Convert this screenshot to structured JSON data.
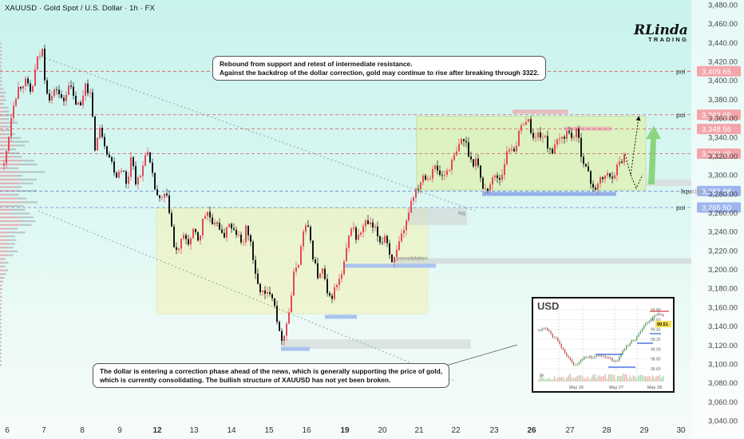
{
  "title": "XAUUSD · Gold Spot / U.S. Dollar · 1h · FX",
  "logo": {
    "main": "RLinda",
    "sub": "TRADING"
  },
  "notes": {
    "top": [
      "Rebound from support and retest of intermediate resistance.",
      "Against the backdrop of the dollar correction, gold may continue to rise after breaking through 3322."
    ],
    "bottom": [
      "The dollar is entering a correction phase ahead of the news, which is generally supporting the price of gold,",
      "which is currently consolidating. The bullish structure of XAUUSD has not yet been broken."
    ]
  },
  "levels": [
    {
      "price": 3409.65,
      "label": "3,409.65",
      "tag": "poi",
      "color": "#e53940",
      "line": "#d95a66"
    },
    {
      "price": 3363.65,
      "label": "3,363.65",
      "tag": "poi",
      "color": "#e53940",
      "line": "#d95a66"
    },
    {
      "price": 3348.56,
      "label": "3,348.56",
      "tag": "",
      "color": "#e53940",
      "line": "#d95a66"
    },
    {
      "price": 3322.49,
      "label": "3,322.49",
      "tag": "",
      "color": "#e53940",
      "line": "#d95a66"
    },
    {
      "price": 3282.88,
      "label": "3,282.88",
      "tag": "liquidity",
      "color": "#2a5bd7",
      "line": "#5a7bd7"
    },
    {
      "price": 3265.5,
      "label": "3,265.50",
      "tag": "poi",
      "color": "#2a5bd7",
      "line": "#6a8ad0"
    }
  ],
  "zones": {
    "fvg": "fvg",
    "consolidation": "consolidation"
  },
  "inset": {
    "title": "USD",
    "price_ticks": [
      "99.80",
      "99.60",
      "99.40",
      "99.20",
      "99.00",
      "98.80",
      "98.60"
    ],
    "current": "99.51",
    "volume_label": "5k",
    "dates": [
      "May 26",
      "May 27",
      "May 28"
    ]
  },
  "chart_data": {
    "type": "candlestick",
    "symbol": "XAUUSD",
    "timeframe": "1h",
    "y_ticks": [
      3480,
      3460,
      3440,
      3420,
      3400,
      3380,
      3360,
      3340,
      3320,
      3300,
      3280,
      3260,
      3240,
      3220,
      3200,
      3180,
      3160,
      3140,
      3120,
      3100,
      3080,
      3060,
      3040
    ],
    "y_tick_labels": [
      "3,480.00",
      "3,460.00",
      "3,440.00",
      "3,420.00",
      "3,400.00",
      "3,380.00",
      "3,360.00",
      "3,340.00",
      "3,320.00",
      "3,300.00",
      "3,280.00",
      "3,260.00",
      "3,240.00",
      "3,220.00",
      "3,200.00",
      "3,180.00",
      "3,160.00",
      "3,140.00",
      "3,120.00",
      "3,100.00",
      "3,080.00",
      "3,060.00",
      "3,040.00"
    ],
    "ylim": [
      3036,
      3486
    ],
    "x_labels": [
      {
        "text": "6",
        "bold": false
      },
      {
        "text": "7",
        "bold": false
      },
      {
        "text": "8",
        "bold": false
      },
      {
        "text": "9",
        "bold": false
      },
      {
        "text": "12",
        "bold": true
      },
      {
        "text": "13",
        "bold": false
      },
      {
        "text": "14",
        "bold": false
      },
      {
        "text": "15",
        "bold": false
      },
      {
        "text": "16",
        "bold": false
      },
      {
        "text": "19",
        "bold": true
      },
      {
        "text": "20",
        "bold": false
      },
      {
        "text": "21",
        "bold": false
      },
      {
        "text": "22",
        "bold": false
      },
      {
        "text": "23",
        "bold": false
      },
      {
        "text": "26",
        "bold": true
      },
      {
        "text": "27",
        "bold": false
      },
      {
        "text": "28",
        "bold": false
      },
      {
        "text": "29",
        "bold": false
      },
      {
        "text": "30",
        "bold": false
      }
    ],
    "path": [
      [
        0,
        3290
      ],
      [
        8,
        3330
      ],
      [
        15,
        3375
      ],
      [
        22,
        3392
      ],
      [
        30,
        3400
      ],
      [
        38,
        3385
      ],
      [
        45,
        3420
      ],
      [
        52,
        3432
      ],
      [
        56,
        3395
      ],
      [
        62,
        3380
      ],
      [
        70,
        3392
      ],
      [
        78,
        3375
      ],
      [
        85,
        3398
      ],
      [
        92,
        3378
      ],
      [
        100,
        3372
      ],
      [
        106,
        3398
      ],
      [
        112,
        3385
      ],
      [
        118,
        3330
      ],
      [
        125,
        3350
      ],
      [
        132,
        3328
      ],
      [
        138,
        3315
      ],
      [
        145,
        3300
      ],
      [
        152,
        3310
      ],
      [
        158,
        3285
      ],
      [
        163,
        3322
      ],
      [
        170,
        3290
      ],
      [
        176,
        3300
      ],
      [
        182,
        3330
      ],
      [
        188,
        3305
      ],
      [
        194,
        3282
      ],
      [
        200,
        3270
      ],
      [
        206,
        3280
      ],
      [
        212,
        3260
      ],
      [
        218,
        3215
      ],
      [
        224,
        3225
      ],
      [
        230,
        3235
      ],
      [
        236,
        3228
      ],
      [
        242,
        3240
      ],
      [
        248,
        3230
      ],
      [
        254,
        3255
      ],
      [
        260,
        3262
      ],
      [
        266,
        3240
      ],
      [
        272,
        3254
      ],
      [
        278,
        3230
      ],
      [
        284,
        3250
      ],
      [
        290,
        3240
      ],
      [
        296,
        3238
      ],
      [
        302,
        3225
      ],
      [
        308,
        3245
      ],
      [
        314,
        3225
      ],
      [
        320,
        3185
      ],
      [
        326,
        3178
      ],
      [
        332,
        3170
      ],
      [
        338,
        3180
      ],
      [
        344,
        3160
      ],
      [
        350,
        3125
      ],
      [
        356,
        3135
      ],
      [
        362,
        3160
      ],
      [
        368,
        3200
      ],
      [
        374,
        3210
      ],
      [
        380,
        3248
      ],
      [
        386,
        3240
      ],
      [
        392,
        3210
      ],
      [
        398,
        3190
      ],
      [
        404,
        3200
      ],
      [
        410,
        3165
      ],
      [
        416,
        3175
      ],
      [
        422,
        3185
      ],
      [
        428,
        3195
      ],
      [
        434,
        3225
      ],
      [
        440,
        3250
      ],
      [
        446,
        3230
      ],
      [
        452,
        3242
      ],
      [
        458,
        3250
      ],
      [
        464,
        3245
      ],
      [
        470,
        3240
      ],
      [
        476,
        3228
      ],
      [
        482,
        3238
      ],
      [
        488,
        3212
      ],
      [
        494,
        3210
      ],
      [
        500,
        3230
      ],
      [
        506,
        3240
      ],
      [
        512,
        3268
      ],
      [
        518,
        3282
      ],
      [
        524,
        3290
      ],
      [
        530,
        3302
      ],
      [
        536,
        3296
      ],
      [
        542,
        3310
      ],
      [
        548,
        3302
      ],
      [
        554,
        3298
      ],
      [
        560,
        3306
      ],
      [
        566,
        3315
      ],
      [
        572,
        3325
      ],
      [
        578,
        3340
      ],
      [
        584,
        3330
      ],
      [
        590,
        3312
      ],
      [
        596,
        3318
      ],
      [
        602,
        3290
      ],
      [
        608,
        3284
      ],
      [
        614,
        3292
      ],
      [
        620,
        3300
      ],
      [
        626,
        3295
      ],
      [
        632,
        3318
      ],
      [
        638,
        3330
      ],
      [
        644,
        3328
      ],
      [
        650,
        3345
      ],
      [
        656,
        3360
      ],
      [
        662,
        3355
      ],
      [
        668,
        3335
      ],
      [
        674,
        3345
      ],
      [
        680,
        3340
      ],
      [
        686,
        3330
      ],
      [
        692,
        3325
      ],
      [
        698,
        3335
      ],
      [
        704,
        3340
      ],
      [
        710,
        3346
      ],
      [
        716,
        3340
      ],
      [
        722,
        3345
      ],
      [
        728,
        3320
      ],
      [
        734,
        3305
      ],
      [
        740,
        3290
      ],
      [
        746,
        3286
      ],
      [
        752,
        3295
      ],
      [
        758,
        3300
      ],
      [
        764,
        3298
      ],
      [
        770,
        3305
      ],
      [
        776,
        3314
      ],
      [
        782,
        3322
      ]
    ]
  }
}
